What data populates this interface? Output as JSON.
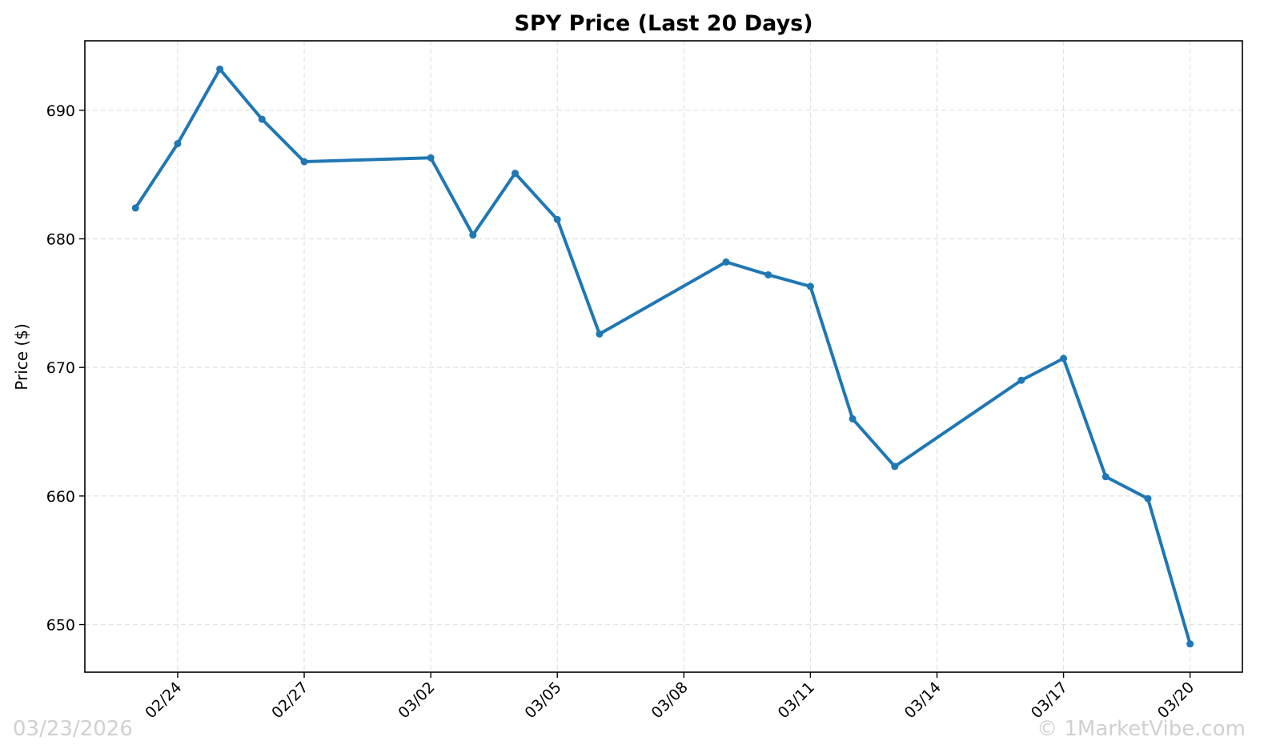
{
  "chart_data": {
    "type": "line",
    "title": "SPY Price (Last 20 Days)",
    "xlabel": "",
    "ylabel": "Price ($)",
    "x": [
      "02/23",
      "02/24",
      "02/25",
      "02/26",
      "02/27",
      "03/02",
      "03/03",
      "03/04",
      "03/05",
      "03/06",
      "03/09",
      "03/10",
      "03/11",
      "03/12",
      "03/13",
      "03/16",
      "03/17",
      "03/18",
      "03/19",
      "03/20"
    ],
    "x_day_index": [
      0,
      1,
      2,
      3,
      4,
      7,
      8,
      9,
      10,
      11,
      14,
      15,
      16,
      17,
      18,
      21,
      22,
      23,
      24,
      25
    ],
    "series": [
      {
        "name": "SPY",
        "color": "#1f77b4",
        "values": [
          682.4,
          687.4,
          693.2,
          689.3,
          686.0,
          686.3,
          680.3,
          685.1,
          681.5,
          672.6,
          678.2,
          677.2,
          676.3,
          666.0,
          662.3,
          669.0,
          670.7,
          661.5,
          659.8,
          648.5
        ]
      }
    ],
    "xticks": [
      {
        "day": 1,
        "label": "02/24"
      },
      {
        "day": 4,
        "label": "02/27"
      },
      {
        "day": 7,
        "label": "03/02"
      },
      {
        "day": 10,
        "label": "03/05"
      },
      {
        "day": 13,
        "label": "03/08"
      },
      {
        "day": 16,
        "label": "03/11"
      },
      {
        "day": 19,
        "label": "03/14"
      },
      {
        "day": 22,
        "label": "03/17"
      },
      {
        "day": 25,
        "label": "03/20"
      }
    ],
    "yticks": [
      650,
      660,
      670,
      680,
      690
    ],
    "xlim": [
      -1.2,
      26.24
    ],
    "ylim": [
      646.3,
      695.4
    ],
    "grid": true
  },
  "watermark": {
    "date": "03/23/2026",
    "brand": "© 1MarketVibe.com"
  }
}
